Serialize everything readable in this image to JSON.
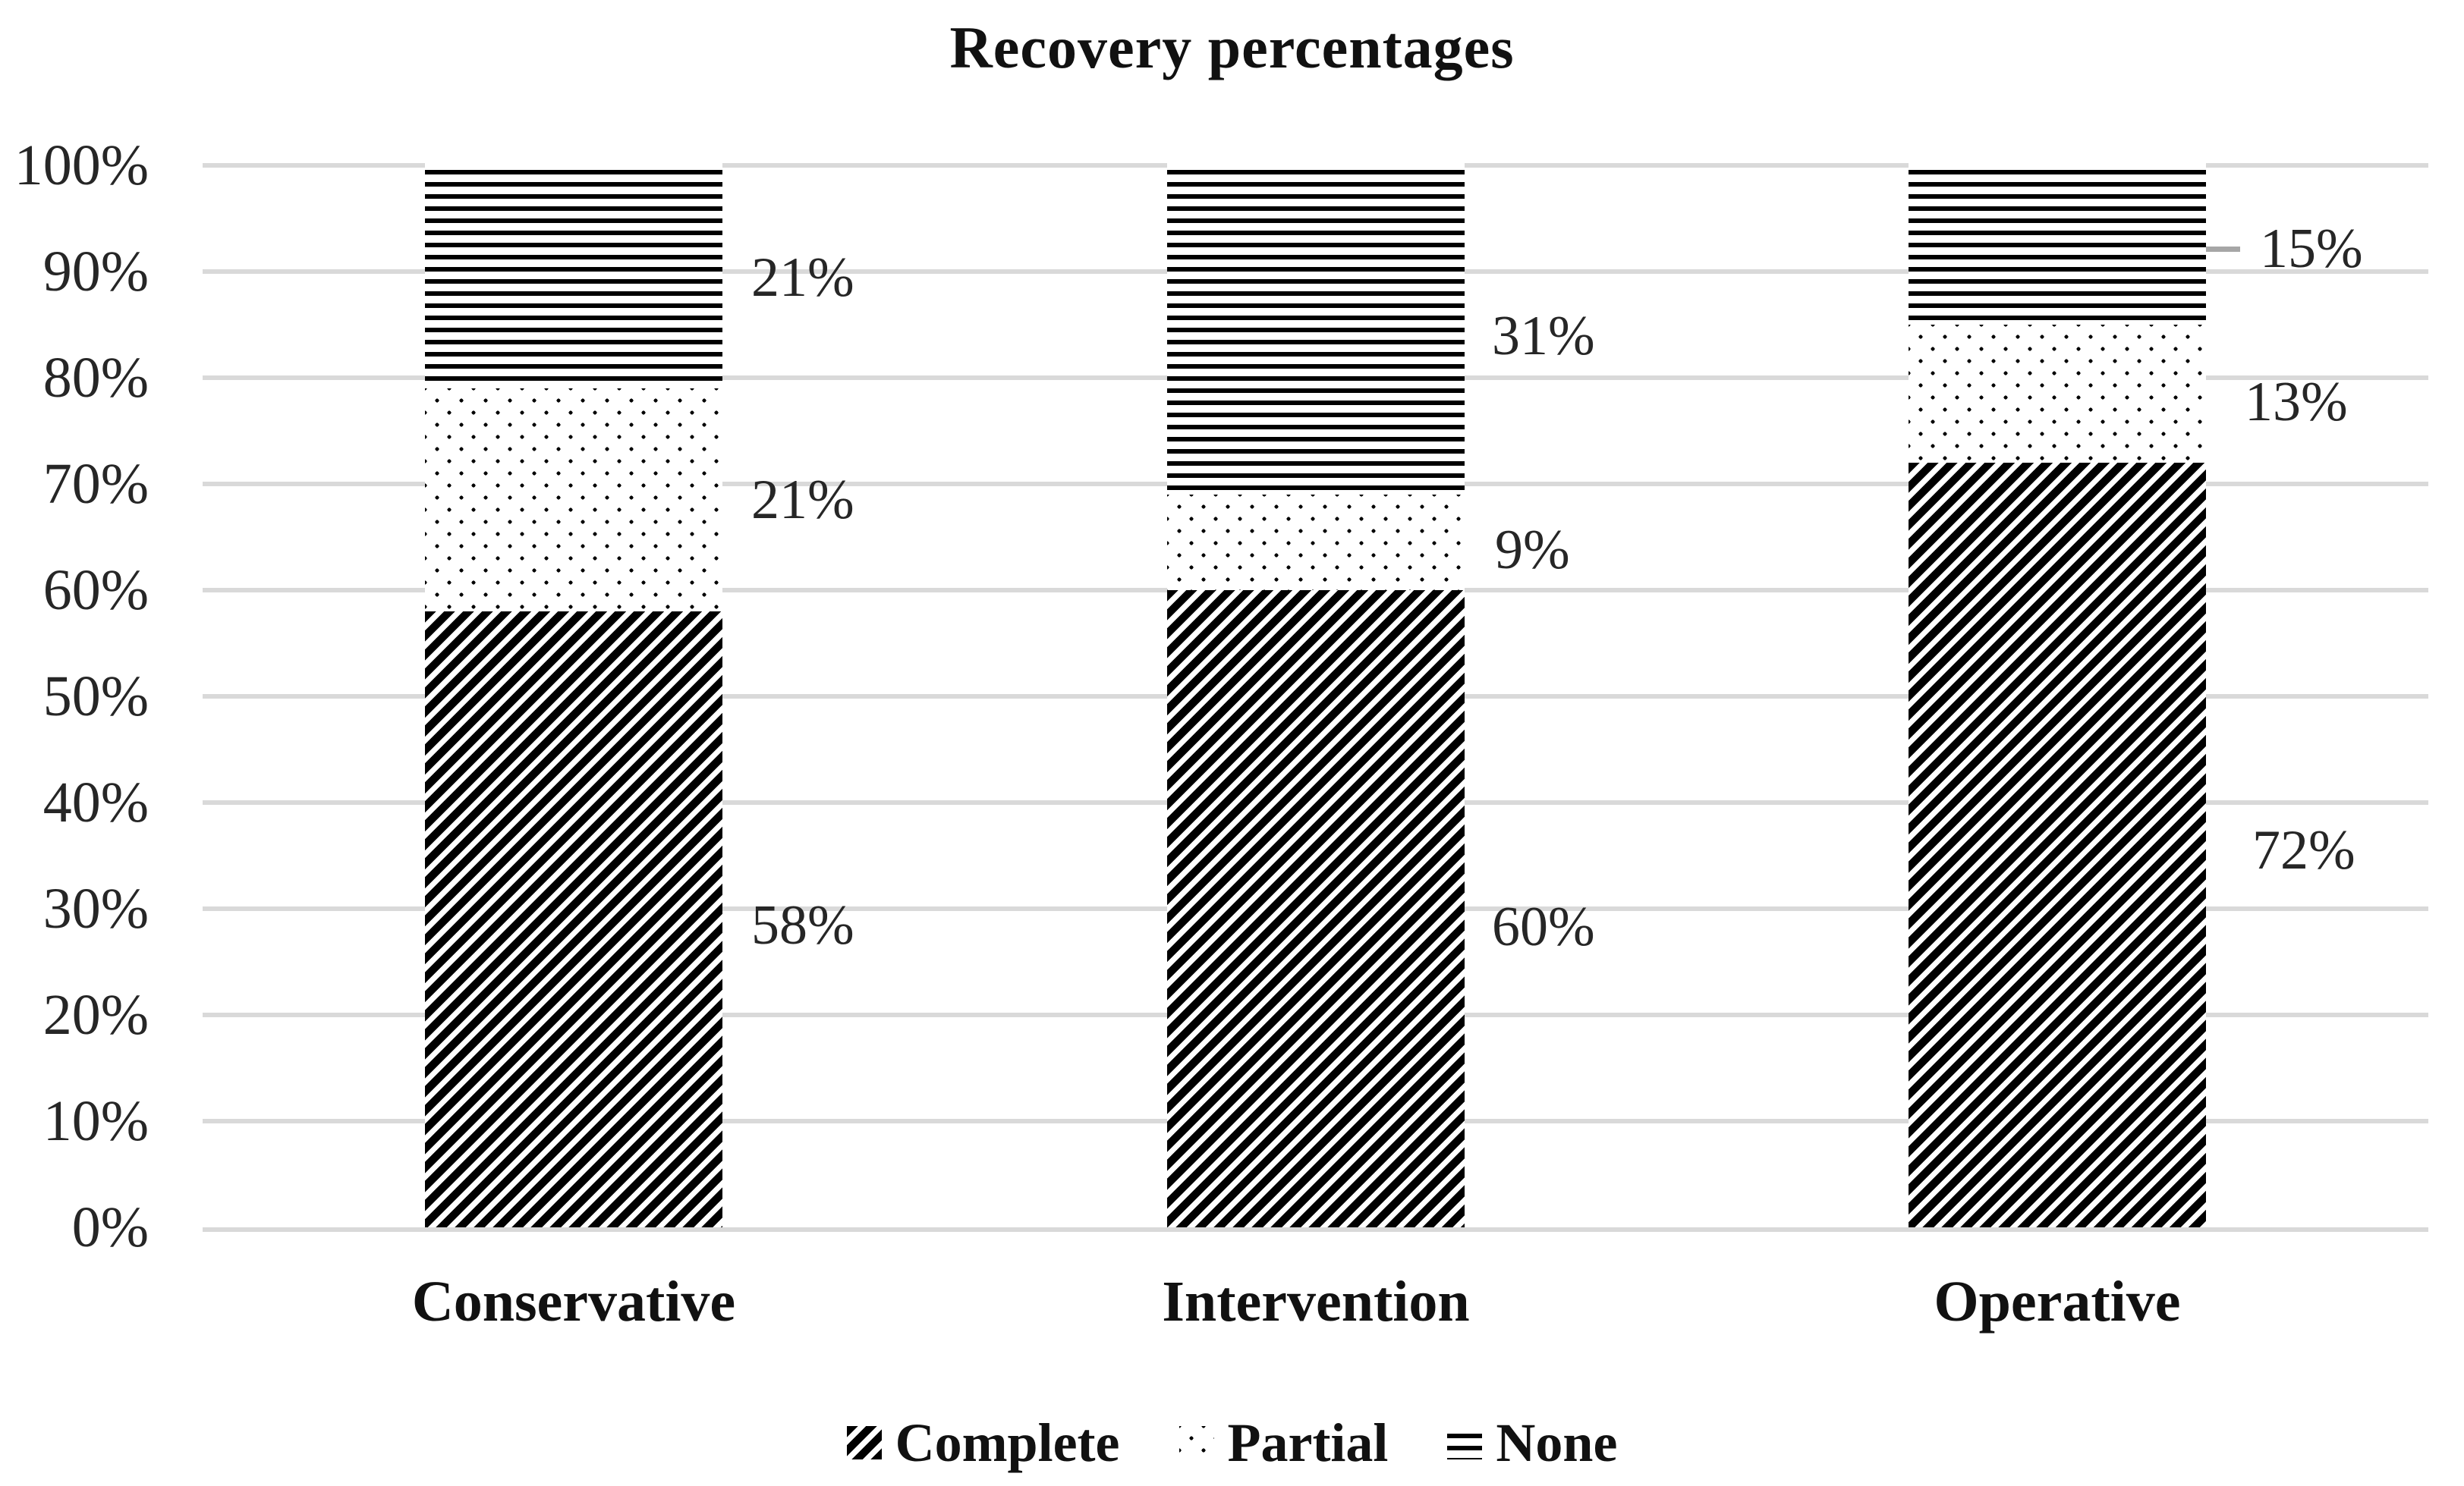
{
  "chart_data": {
    "type": "bar",
    "stacked": true,
    "title": "Recovery percentages",
    "categories": [
      "Conservative",
      "Intervention",
      "Operative"
    ],
    "series": [
      {
        "name": "Complete",
        "pattern": "diagonal-hatch",
        "values": [
          58,
          60,
          72
        ],
        "labels": [
          "58%",
          "60%",
          "72%"
        ]
      },
      {
        "name": "Partial",
        "pattern": "dots",
        "values": [
          21,
          9,
          13
        ],
        "labels": [
          "21%",
          "9%",
          "13%"
        ]
      },
      {
        "name": "None",
        "pattern": "horizontal-lines",
        "values": [
          21,
          31,
          15
        ],
        "labels": [
          "21%",
          "31%",
          "15%"
        ]
      }
    ],
    "ylim": [
      0,
      100
    ],
    "yticks": [
      "0%",
      "10%",
      "20%",
      "30%",
      "40%",
      "50%",
      "60%",
      "70%",
      "80%",
      "90%",
      "100%"
    ],
    "grid": true,
    "legend_position": "bottom",
    "data_label_position": "outside-right",
    "leader_line": {
      "category": "Operative",
      "series": "None"
    },
    "colors": {
      "pattern_foreground": "#000000",
      "background": "#ffffff",
      "gridline": "#d9d9d9",
      "label_text": "#262626",
      "leader_line": "#a6a6a6"
    }
  }
}
